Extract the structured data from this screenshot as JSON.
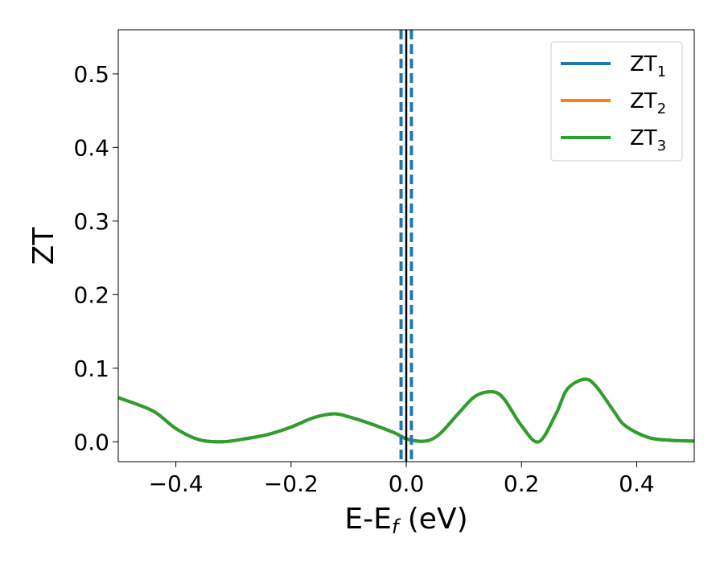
{
  "chart_data": {
    "type": "line",
    "xlabel": "E-E",
    "xlabel_sub": "f",
    "xlabel_unit": " (eV)",
    "ylabel": "ZT",
    "xlim": [
      -0.5,
      0.5
    ],
    "ylim": [
      -0.027,
      0.56
    ],
    "x_ticks": [
      -0.4,
      -0.2,
      0.0,
      0.2,
      0.4
    ],
    "x_tick_labels": [
      "−0.4",
      "−0.2",
      "0.0",
      "0.2",
      "0.4"
    ],
    "y_ticks": [
      0.0,
      0.1,
      0.2,
      0.3,
      0.4,
      0.5
    ],
    "y_tick_labels": [
      "0.0",
      "0.1",
      "0.2",
      "0.3",
      "0.4",
      "0.5"
    ],
    "grid": false,
    "legend_position": "top-right",
    "series": [
      {
        "name": "ZT",
        "sub": "1",
        "color": "#1f77b4",
        "x": [
          -0.5,
          -0.44,
          -0.4,
          -0.36,
          -0.32,
          -0.28,
          -0.24,
          -0.2,
          -0.16,
          -0.125,
          -0.1,
          -0.06,
          -0.02,
          0.0,
          0.02,
          0.04,
          0.06,
          0.09,
          0.12,
          0.15,
          0.17,
          0.2,
          0.23,
          0.26,
          0.28,
          0.31,
          0.33,
          0.36,
          0.38,
          0.42,
          0.46,
          0.5
        ],
        "y": [
          0.06,
          0.042,
          0.018,
          0.003,
          0.0,
          0.004,
          0.01,
          0.02,
          0.033,
          0.038,
          0.034,
          0.024,
          0.012,
          0.004,
          0.001,
          0.002,
          0.012,
          0.038,
          0.062,
          0.068,
          0.058,
          0.022,
          0.0,
          0.038,
          0.072,
          0.085,
          0.075,
          0.042,
          0.022,
          0.006,
          0.002,
          0.001
        ]
      },
      {
        "name": "ZT",
        "sub": "2",
        "color": "#ff7f0e",
        "x": [
          -0.5,
          -0.44,
          -0.4,
          -0.36,
          -0.32,
          -0.28,
          -0.24,
          -0.2,
          -0.16,
          -0.125,
          -0.1,
          -0.06,
          -0.02,
          0.0,
          0.02,
          0.04,
          0.06,
          0.09,
          0.12,
          0.15,
          0.17,
          0.2,
          0.23,
          0.26,
          0.28,
          0.31,
          0.33,
          0.36,
          0.38,
          0.42,
          0.46,
          0.5
        ],
        "y": [
          0.06,
          0.042,
          0.018,
          0.003,
          0.0,
          0.004,
          0.01,
          0.02,
          0.033,
          0.038,
          0.034,
          0.024,
          0.012,
          0.004,
          0.001,
          0.002,
          0.012,
          0.038,
          0.062,
          0.068,
          0.058,
          0.022,
          0.0,
          0.038,
          0.072,
          0.085,
          0.075,
          0.042,
          0.022,
          0.006,
          0.002,
          0.001
        ]
      },
      {
        "name": "ZT",
        "sub": "3",
        "color": "#2ca02c",
        "x": [
          -0.5,
          -0.44,
          -0.4,
          -0.36,
          -0.32,
          -0.28,
          -0.24,
          -0.2,
          -0.16,
          -0.125,
          -0.1,
          -0.06,
          -0.02,
          0.0,
          0.02,
          0.04,
          0.06,
          0.09,
          0.12,
          0.15,
          0.17,
          0.2,
          0.23,
          0.26,
          0.28,
          0.31,
          0.33,
          0.36,
          0.38,
          0.42,
          0.46,
          0.5
        ],
        "y": [
          0.06,
          0.042,
          0.018,
          0.003,
          0.0,
          0.004,
          0.01,
          0.02,
          0.033,
          0.038,
          0.034,
          0.024,
          0.012,
          0.004,
          0.001,
          0.002,
          0.012,
          0.038,
          0.062,
          0.068,
          0.058,
          0.022,
          0.0,
          0.038,
          0.072,
          0.085,
          0.075,
          0.042,
          0.022,
          0.006,
          0.002,
          0.001
        ]
      }
    ],
    "vertical_lines": [
      {
        "x": -0.009,
        "style": "dashed",
        "color": "#1f77b4"
      },
      {
        "x": 0.0,
        "style": "solid",
        "color": "#000000"
      },
      {
        "x": 0.009,
        "style": "dashed",
        "color": "#1f77b4"
      }
    ]
  }
}
